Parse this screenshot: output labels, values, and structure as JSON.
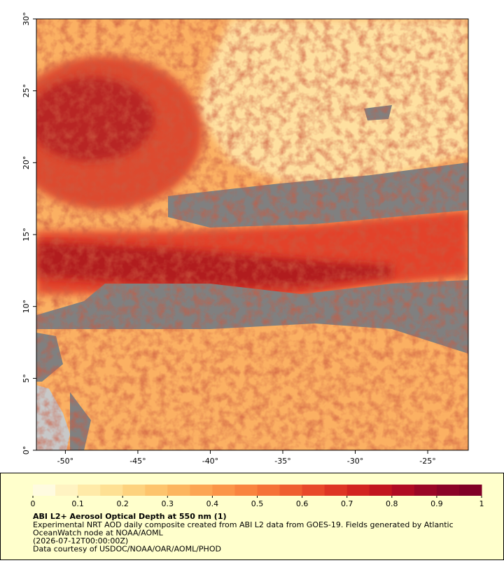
{
  "map": {
    "xlim": [
      -52,
      -22.2
    ],
    "ylim": [
      0,
      30
    ],
    "xticks": [
      {
        "value": -50,
        "label": "-50°"
      },
      {
        "value": -45,
        "label": "-45°"
      },
      {
        "value": -40,
        "label": "-40°"
      },
      {
        "value": -35,
        "label": "-35°"
      },
      {
        "value": -30,
        "label": "-30°"
      },
      {
        "value": -25,
        "label": "-25°"
      }
    ],
    "yticks": [
      {
        "value": 0,
        "label": "0°"
      },
      {
        "value": 5,
        "label": "5°"
      },
      {
        "value": 10,
        "label": "10°"
      },
      {
        "value": 15,
        "label": "15°"
      },
      {
        "value": 20,
        "label": "20°"
      },
      {
        "value": 25,
        "label": "25°"
      },
      {
        "value": 30,
        "label": "30°"
      }
    ]
  },
  "colorbar": {
    "lim": [
      0,
      1
    ],
    "ticks": [
      0,
      0.1,
      0.2,
      0.3,
      0.4,
      0.5,
      0.6,
      0.7,
      0.8,
      0.9,
      1
    ],
    "colors": [
      "#fffbe0",
      "#fff3c2",
      "#ffeaa8",
      "#fee093",
      "#fdd27e",
      "#fdc46d",
      "#fcb55f",
      "#fca553",
      "#fb9548",
      "#f9843f",
      "#f57237",
      "#ef5e30",
      "#e8492a",
      "#de3524",
      "#d22420",
      "#c2151f",
      "#b00b23",
      "#9a0626",
      "#8a0327",
      "#800026"
    ]
  },
  "legend": {
    "title": "ABI L2+ Aerosol Optical Depth at 550 nm (1)",
    "lines": [
      "Experimental NRT AOD daily composite created from ABI L2 data from GOES-19. Fields generated by Atlantic",
      "OceanWatch node at NOAA/AOML",
      "(2026-07-12T00:00:00Z)",
      "Data courtesy of USDOC/NOAA/OAR/AOML/PHOD"
    ]
  }
}
